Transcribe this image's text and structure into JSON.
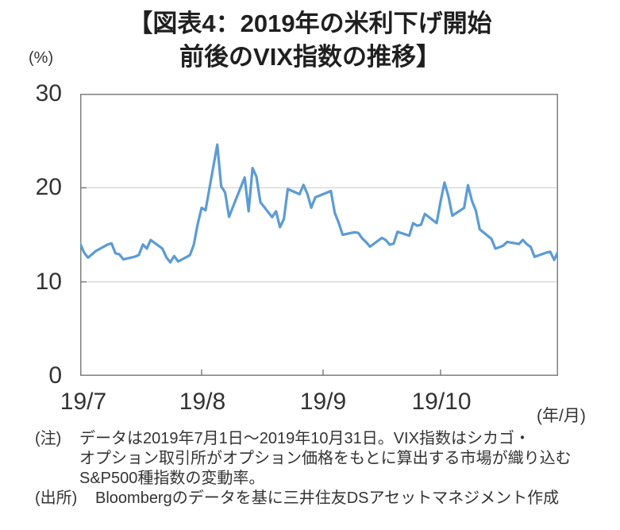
{
  "title": {
    "line1": "【図表4：2019年の米利下げ開始",
    "line2": "前後のVIX指数の推移】"
  },
  "colors": {
    "line": "#5B9BD5",
    "axis_border": "#7F7F7F",
    "gridline": "#D9D9D9",
    "text": "#333333"
  },
  "chart_data": {
    "type": "line",
    "title": "【図表4：2019年の米利下げ開始前後のVIX指数の推移】",
    "y_unit_label": "(%)",
    "x_unit_label": "(年/月)",
    "ylim": [
      0,
      30
    ],
    "yticks": [
      0,
      10,
      20,
      30
    ],
    "grid": "horizontal-only",
    "legend": "none",
    "x_start_date": "7/1",
    "x_end_date": "10/31",
    "xticks": [
      {
        "label": "19/7",
        "date": "7/1"
      },
      {
        "label": "19/8",
        "date": "8/1"
      },
      {
        "label": "19/9",
        "date": "9/1"
      },
      {
        "label": "19/10",
        "date": "10/1"
      }
    ],
    "series": [
      {
        "name": "VIX指数",
        "points": [
          [
            "7/1",
            14.06
          ],
          [
            "7/2",
            13.11
          ],
          [
            "7/3",
            12.57
          ],
          [
            "7/5",
            13.28
          ],
          [
            "7/8",
            13.96
          ],
          [
            "7/9",
            14.09
          ],
          [
            "7/10",
            13.03
          ],
          [
            "7/11",
            12.93
          ],
          [
            "7/12",
            12.39
          ],
          [
            "7/15",
            12.68
          ],
          [
            "7/16",
            12.86
          ],
          [
            "7/17",
            13.97
          ],
          [
            "7/18",
            13.53
          ],
          [
            "7/19",
            14.45
          ],
          [
            "7/22",
            13.53
          ],
          [
            "7/23",
            12.61
          ],
          [
            "7/24",
            12.07
          ],
          [
            "7/25",
            12.74
          ],
          [
            "7/26",
            12.16
          ],
          [
            "7/29",
            12.83
          ],
          [
            "7/30",
            13.94
          ],
          [
            "7/31",
            16.12
          ],
          [
            "8/1",
            17.87
          ],
          [
            "8/2",
            17.61
          ],
          [
            "8/5",
            24.59
          ],
          [
            "8/6",
            20.17
          ],
          [
            "8/7",
            19.49
          ],
          [
            "8/8",
            16.91
          ],
          [
            "8/9",
            17.97
          ],
          [
            "8/12",
            21.09
          ],
          [
            "8/13",
            17.5
          ],
          [
            "8/14",
            22.1
          ],
          [
            "8/15",
            21.18
          ],
          [
            "8/16",
            18.47
          ],
          [
            "8/19",
            16.88
          ],
          [
            "8/20",
            17.5
          ],
          [
            "8/21",
            15.8
          ],
          [
            "8/22",
            16.68
          ],
          [
            "8/23",
            19.87
          ],
          [
            "8/26",
            19.32
          ],
          [
            "8/27",
            20.31
          ],
          [
            "8/28",
            19.35
          ],
          [
            "8/29",
            17.88
          ],
          [
            "8/30",
            18.98
          ],
          [
            "9/3",
            19.66
          ],
          [
            "9/4",
            17.33
          ],
          [
            "9/5",
            16.27
          ],
          [
            "9/6",
            15.0
          ],
          [
            "9/9",
            15.27
          ],
          [
            "9/10",
            15.2
          ],
          [
            "9/11",
            14.61
          ],
          [
            "9/12",
            14.22
          ],
          [
            "9/13",
            13.74
          ],
          [
            "9/16",
            14.67
          ],
          [
            "9/17",
            14.44
          ],
          [
            "9/18",
            13.95
          ],
          [
            "9/19",
            14.05
          ],
          [
            "9/20",
            15.32
          ],
          [
            "9/23",
            14.91
          ],
          [
            "9/24",
            16.24
          ],
          [
            "9/25",
            15.96
          ],
          [
            "9/26",
            16.07
          ],
          [
            "9/27",
            17.22
          ],
          [
            "9/30",
            16.24
          ],
          [
            "10/1",
            18.56
          ],
          [
            "10/2",
            20.56
          ],
          [
            "10/3",
            19.12
          ],
          [
            "10/4",
            17.04
          ],
          [
            "10/7",
            17.86
          ],
          [
            "10/8",
            20.28
          ],
          [
            "10/9",
            18.64
          ],
          [
            "10/10",
            17.57
          ],
          [
            "10/11",
            15.58
          ],
          [
            "10/14",
            14.57
          ],
          [
            "10/15",
            13.54
          ],
          [
            "10/16",
            13.68
          ],
          [
            "10/17",
            13.85
          ],
          [
            "10/18",
            14.25
          ],
          [
            "10/21",
            14.02
          ],
          [
            "10/22",
            14.46
          ],
          [
            "10/23",
            14.01
          ],
          [
            "10/24",
            13.71
          ],
          [
            "10/25",
            12.65
          ],
          [
            "10/28",
            13.11
          ],
          [
            "10/29",
            13.2
          ],
          [
            "10/30",
            12.33
          ],
          [
            "10/31",
            13.22
          ]
        ]
      }
    ]
  },
  "notes": {
    "note_label": "(注)",
    "note_lines": [
      "データは2019年7月1日～2019年10月31日。VIX指数はシカゴ・",
      "オプション取引所がオプション価格をもとに算出する市場が織り込む",
      "S&P500種指数の変動率。"
    ],
    "source_label": "(出所)",
    "source_text": "Bloombergのデータを基に三井住友DSアセットマネジメント作成"
  }
}
